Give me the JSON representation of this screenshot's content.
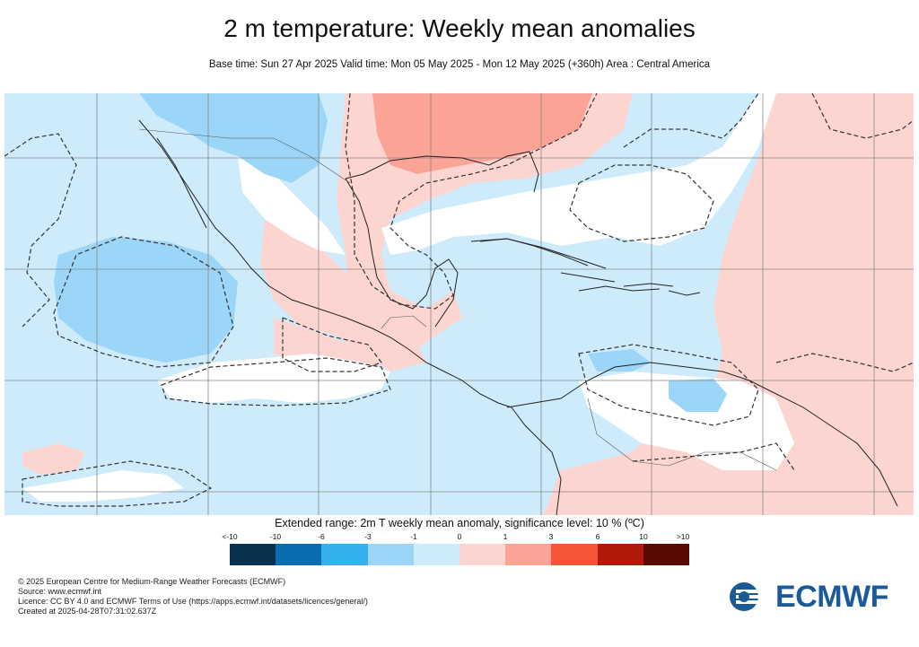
{
  "title": "2 m temperature: Weekly mean anomalies",
  "subtitle": "Base time: Sun 27 Apr 2025 Valid time: Mon 05 May 2025 - Mon 12 May 2025 (+360h) Area : Central America",
  "legend": {
    "title": "Extended range: 2m T weekly mean anomaly, significance level: 10 % (ºC)",
    "ticks": [
      "<-10",
      "-10",
      "-6",
      "-3",
      "-1",
      "0",
      "1",
      "3",
      "6",
      "10",
      ">10"
    ],
    "colors": [
      "#08324f",
      "#0a6db0",
      "#35b0ef",
      "#9bd5f7",
      "#cdebfb",
      "#fdd5d0",
      "#fba394",
      "#f45536",
      "#b01a0b",
      "#5a0a05"
    ]
  },
  "colors": {
    "ocean_base": "#cdebfb",
    "cool_moderate": "#9bd5f7",
    "warm_light": "#fdd5d0",
    "warm_moderate": "#fba394",
    "neutral": "#ffffff",
    "significance_contour": "#333333",
    "logo": "#1a5a96"
  },
  "footer": {
    "line1": "© 2025 European Centre for Medium-Range Weather Forecasts (ECMWF)",
    "line2": "Source: www.ecmwf.int",
    "line3": "Licence: CC BY 4.0 and ECMWF Terms of Use (https://apps.ecmwf.int/datasets/licences/general/)",
    "line4": "Created at 2025-04-28T07:31:02.637Z"
  },
  "logo": {
    "text": "ECMWF",
    "icon": "ecmwf-logo-icon"
  }
}
